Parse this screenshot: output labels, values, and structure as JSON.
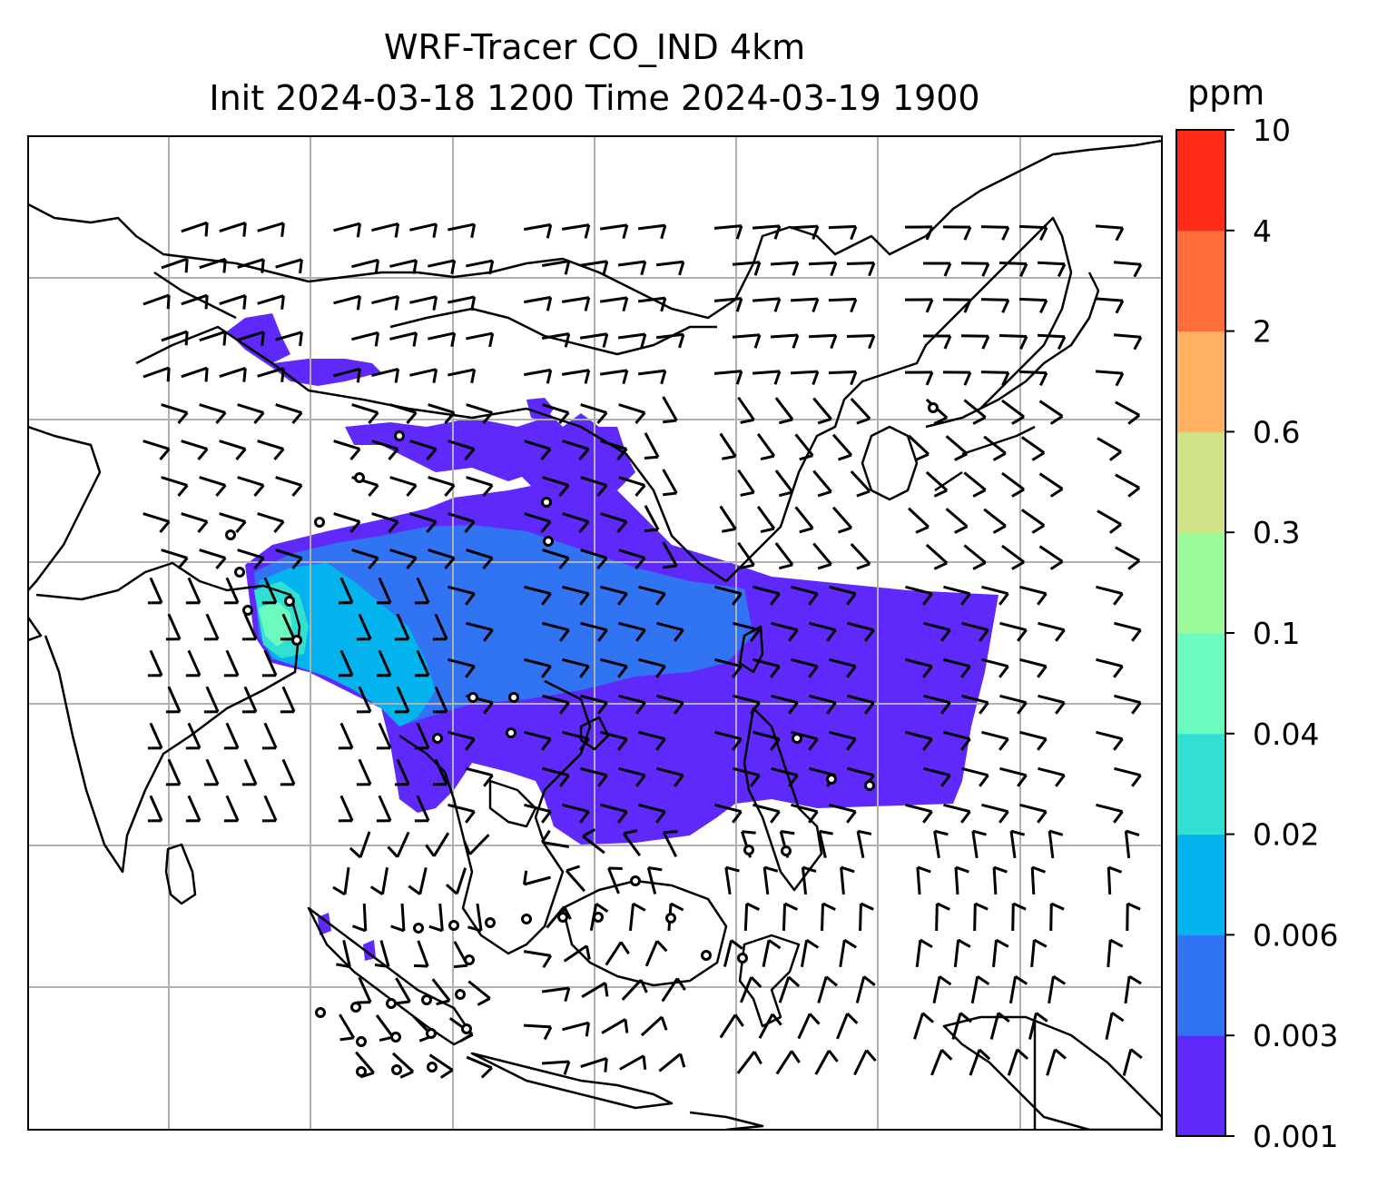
{
  "title": {
    "line1": "WRF-Tracer CO_IND 4km",
    "line2": "Init 2024-03-18 1200 Time 2024-03-19 1900"
  },
  "colorbar": {
    "unit": "ppm",
    "levels": [
      "0.001",
      "0.003",
      "0.006",
      "0.02",
      "0.04",
      "0.1",
      "0.3",
      "0.6",
      "2",
      "4",
      "10"
    ],
    "colors": [
      "#6029fb",
      "#3073f3",
      "#02b3ed",
      "#31dfd3",
      "#6bfbbf",
      "#9cfa9a",
      "#cfe288",
      "#ffb061",
      "#ff6e3b",
      "#ff2a17"
    ]
  },
  "map": {
    "grid": "on",
    "plume_colors": {
      "lowest": "#6029fb",
      "low": "#3073f3",
      "mid": "#02b3ed",
      "mid_high": "#31dfd3",
      "high": "#6bfbbf"
    },
    "coastline_color": "#000000",
    "gridline_color": "#b0b0b0"
  }
}
